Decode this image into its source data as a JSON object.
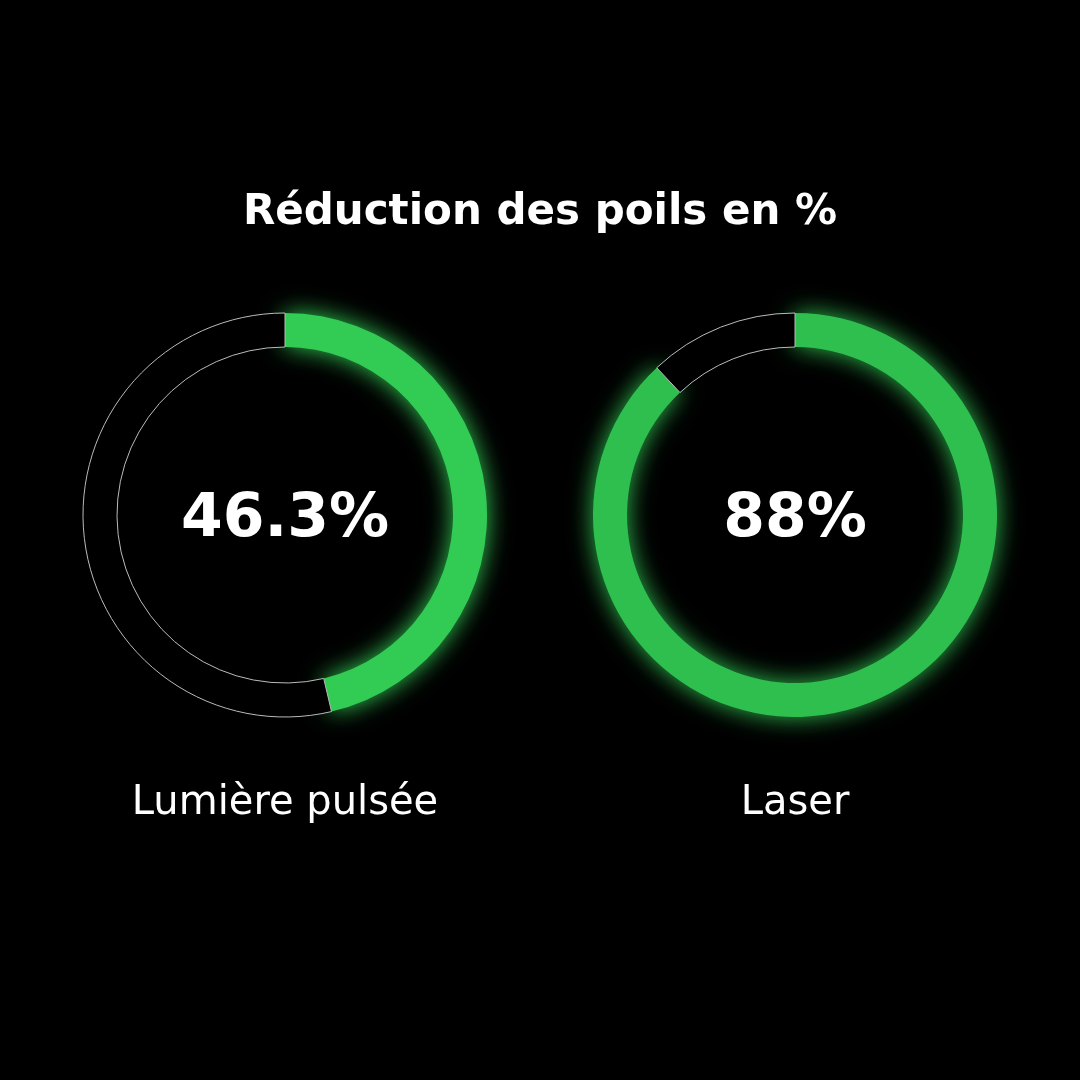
{
  "chart_data": [
    {
      "type": "donut",
      "title": "Réduction des poils en %",
      "xlabel": "Lumière pulsée",
      "categories": [
        null,
        null
      ],
      "values": [
        46.3,
        53.7
      ],
      "colors": [
        "#33cc55",
        "#000000"
      ],
      "annotations": [
        "46.3%"
      ]
    },
    {
      "type": "donut",
      "xlabel": "Laser",
      "categories": [
        null,
        null
      ],
      "values": [
        88,
        12
      ],
      "colors": [
        "#2fbf4f",
        "#000000"
      ],
      "annotations": [
        "88%"
      ]
    }
  ]
}
